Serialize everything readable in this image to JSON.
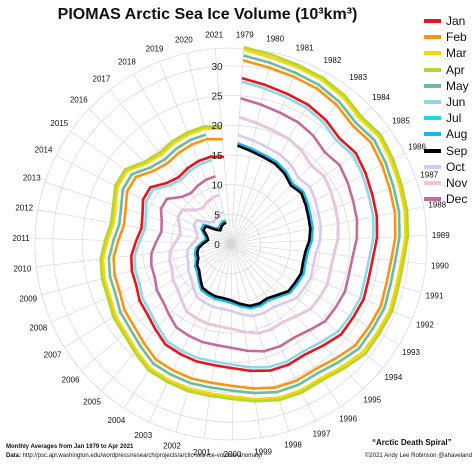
{
  "chart_data": {
    "type": "line",
    "subtype": "polar-spiral",
    "title": "PIOMAS Arctic Sea Ice Volume (10³km³)",
    "radial_ticks": [
      "0",
      "5",
      "10",
      "15",
      "20",
      "25",
      "30"
    ],
    "radial_lim": [
      0,
      33
    ],
    "years": [
      "1979",
      "1980",
      "1981",
      "1982",
      "1983",
      "1984",
      "1985",
      "1986",
      "1987",
      "1988",
      "1989",
      "1990",
      "1991",
      "1992",
      "1993",
      "1994",
      "1995",
      "1996",
      "1997",
      "1998",
      "1999",
      "2000",
      "2001",
      "2002",
      "2003",
      "2004",
      "2005",
      "2006",
      "2007",
      "2008",
      "2009",
      "2010",
      "2011",
      "2012",
      "2013",
      "2014",
      "2015",
      "2016",
      "2017",
      "2018",
      "2019",
      "2020",
      "2021"
    ],
    "series": [
      {
        "name": "Jan",
        "color": "#e8151b",
        "values": [
          28.0,
          27.4,
          27.0,
          26.8,
          26.3,
          25.5,
          26.0,
          25.6,
          25.2,
          25.0,
          24.6,
          24.0,
          23.9,
          24.2,
          24.0,
          24.0,
          23.1,
          22.4,
          22.5,
          22.3,
          21.6,
          20.9,
          20.6,
          20.6,
          20.4,
          20.2,
          19.2,
          18.4,
          18.1,
          17.4,
          17.3,
          16.9,
          16.0,
          15.3,
          15.7,
          16.6,
          16.6,
          14.9,
          14.3,
          14.7,
          15.0,
          15.1,
          14.7
        ]
      },
      {
        "name": "Feb",
        "color": "#ff9210",
        "values": [
          31.0,
          30.4,
          30.1,
          29.9,
          29.4,
          28.6,
          29.1,
          28.7,
          28.3,
          28.1,
          27.7,
          27.1,
          27.0,
          27.3,
          27.1,
          27.0,
          26.1,
          25.4,
          25.5,
          25.3,
          24.6,
          23.9,
          23.6,
          23.6,
          23.4,
          23.2,
          22.2,
          21.4,
          21.1,
          20.4,
          20.3,
          19.9,
          19.0,
          18.3,
          18.7,
          19.6,
          19.6,
          17.9,
          17.3,
          17.7,
          18.0,
          18.1,
          17.7
        ]
      },
      {
        "name": "Mar",
        "color": "#f5d800",
        "values": [
          32.8,
          32.1,
          31.8,
          31.6,
          31.1,
          30.3,
          30.8,
          30.4,
          30.0,
          29.8,
          29.4,
          28.8,
          28.7,
          29.0,
          28.8,
          28.7,
          27.9,
          27.2,
          27.3,
          27.1,
          26.4,
          25.7,
          25.4,
          25.4,
          25.2,
          25.0,
          24.0,
          23.2,
          22.9,
          22.2,
          22.1,
          21.7,
          20.8,
          20.1,
          20.5,
          21.4,
          21.4,
          19.7,
          19.1,
          19.5,
          19.8,
          19.9,
          19.5
        ]
      },
      {
        "name": "Apr",
        "color": "#b6d432",
        "values": [
          33.2,
          32.6,
          32.2,
          32.0,
          31.5,
          30.7,
          31.2,
          30.8,
          30.4,
          30.2,
          29.8,
          29.2,
          29.1,
          29.4,
          29.2,
          29.2,
          28.3,
          27.6,
          27.7,
          27.5,
          26.8,
          26.1,
          25.8,
          25.8,
          25.6,
          25.4,
          24.4,
          23.6,
          23.3,
          22.6,
          22.5,
          22.1,
          21.2,
          20.5,
          20.9,
          21.8,
          21.8,
          20.1,
          19.5,
          19.9,
          20.2,
          20.3,
          19.9
        ]
      },
      {
        "name": "May",
        "color": "#6bbd9a",
        "values": [
          31.8,
          31.2,
          30.8,
          30.6,
          30.1,
          29.3,
          29.8,
          29.4,
          29.0,
          28.8,
          28.4,
          27.8,
          27.7,
          28.0,
          27.8,
          27.8,
          26.9,
          26.2,
          26.3,
          26.1,
          25.4,
          24.7,
          24.4,
          24.4,
          24.2,
          24.0,
          23.0,
          22.2,
          21.9,
          21.2,
          21.1,
          20.7,
          19.8,
          19.1,
          19.5,
          20.4,
          20.4,
          18.7,
          18.1,
          18.5,
          18.8,
          18.9
        ]
      },
      {
        "name": "Jun",
        "color": "#8ed7e8",
        "values": [
          27.4,
          26.8,
          26.4,
          26.2,
          25.7,
          24.9,
          25.4,
          25.0,
          24.6,
          24.4,
          24.0,
          23.4,
          23.3,
          23.6,
          23.4,
          23.3,
          22.4,
          21.8,
          21.9,
          21.7,
          21.0,
          20.3,
          20.0,
          20.0,
          19.8,
          19.6,
          18.6,
          17.8,
          17.5,
          16.8,
          16.7,
          16.3,
          15.4,
          14.7,
          15.1,
          16.0,
          16.0,
          14.3,
          13.7,
          14.1,
          14.4,
          14.5
        ]
      },
      {
        "name": "Jul",
        "color": "#17dbe0",
        "values": [
          21.4,
          20.8,
          20.4,
          20.2,
          19.7,
          18.9,
          19.4,
          19.0,
          18.6,
          18.4,
          18.0,
          17.4,
          17.3,
          17.6,
          17.4,
          17.3,
          16.4,
          15.8,
          15.9,
          15.7,
          15.0,
          14.3,
          14.0,
          14.0,
          13.8,
          13.6,
          12.6,
          11.8,
          11.5,
          10.8,
          10.7,
          10.3,
          9.4,
          8.7,
          9.1,
          10.0,
          10.0,
          8.3,
          7.7,
          8.1,
          8.4,
          8.5
        ]
      },
      {
        "name": "Aug",
        "color": "#13b9ee",
        "values": [
          17.0,
          16.4,
          16.0,
          15.8,
          15.3,
          14.5,
          15.0,
          14.6,
          14.2,
          14.0,
          13.6,
          13.0,
          12.9,
          13.2,
          13.0,
          12.9,
          12.0,
          11.4,
          11.5,
          11.3,
          10.6,
          9.9,
          9.6,
          9.6,
          9.4,
          9.2,
          8.2,
          7.4,
          7.1,
          6.4,
          6.3,
          5.9,
          5.0,
          4.3,
          4.7,
          5.6,
          5.6,
          3.9,
          3.3,
          3.7,
          4.0,
          4.1
        ]
      },
      {
        "name": "Sep",
        "color": "#000000",
        "values": [
          16.6,
          16.0,
          15.6,
          15.4,
          14.9,
          14.1,
          14.6,
          14.2,
          13.8,
          13.6,
          13.2,
          12.6,
          12.5,
          12.8,
          12.6,
          12.5,
          11.6,
          11.0,
          11.1,
          10.9,
          10.2,
          9.5,
          9.2,
          9.2,
          9.0,
          8.8,
          7.8,
          7.0,
          6.7,
          6.0,
          5.9,
          5.5,
          4.6,
          3.9,
          4.3,
          5.2,
          5.2,
          3.5,
          2.9,
          3.3,
          3.6,
          3.7
        ]
      },
      {
        "name": "Oct",
        "color": "#d9c8f0",
        "values": [
          18.4,
          17.8,
          17.4,
          17.2,
          16.7,
          15.9,
          16.4,
          16.0,
          15.6,
          15.4,
          15.0,
          14.4,
          14.3,
          14.6,
          14.4,
          14.3,
          13.4,
          12.8,
          12.9,
          12.7,
          12.0,
          11.3,
          11.0,
          11.0,
          10.8,
          10.6,
          9.6,
          8.8,
          8.5,
          7.8,
          7.7,
          7.3,
          6.4,
          5.7,
          6.1,
          7.0,
          7.0,
          5.3,
          4.7,
          5.1,
          5.4,
          5.5
        ]
      },
      {
        "name": "Nov",
        "color": "#f3c0df",
        "values": [
          21.4,
          20.8,
          20.4,
          20.2,
          19.7,
          18.9,
          19.4,
          19.0,
          18.6,
          18.4,
          18.0,
          17.4,
          17.3,
          17.6,
          17.4,
          17.3,
          16.4,
          15.8,
          15.9,
          15.7,
          15.0,
          14.3,
          14.0,
          14.0,
          13.8,
          13.6,
          12.6,
          11.8,
          11.5,
          10.8,
          10.7,
          10.3,
          9.4,
          8.7,
          9.1,
          10.0,
          10.0,
          8.3,
          7.7,
          8.1,
          8.4,
          8.5
        ]
      },
      {
        "name": "Dec",
        "color": "#c66a9c",
        "values": [
          24.6,
          24.0,
          23.6,
          23.4,
          22.9,
          22.1,
          22.6,
          22.2,
          21.8,
          21.6,
          21.2,
          20.6,
          20.5,
          20.8,
          20.6,
          20.5,
          19.6,
          19.0,
          19.1,
          18.9,
          18.2,
          17.5,
          17.2,
          17.2,
          17.0,
          16.8,
          15.8,
          15.0,
          14.7,
          14.0,
          13.9,
          13.5,
          12.6,
          11.9,
          12.3,
          13.2,
          13.2,
          11.5,
          10.9,
          11.3,
          11.6,
          11.7
        ]
      }
    ]
  },
  "footer": {
    "monthly_note": "Monthly Averages from Jan 1979 to Apr 2021",
    "data_label": "Data:",
    "data_source": "http://psc.apl.washington.edu/wordpress/research/projects/arctic-sea-ice-volume-anomaly/",
    "chart_name": "“Arctic Death Spiral”",
    "credit": "©2021 Andy Lee Robinson @ahaveland"
  }
}
